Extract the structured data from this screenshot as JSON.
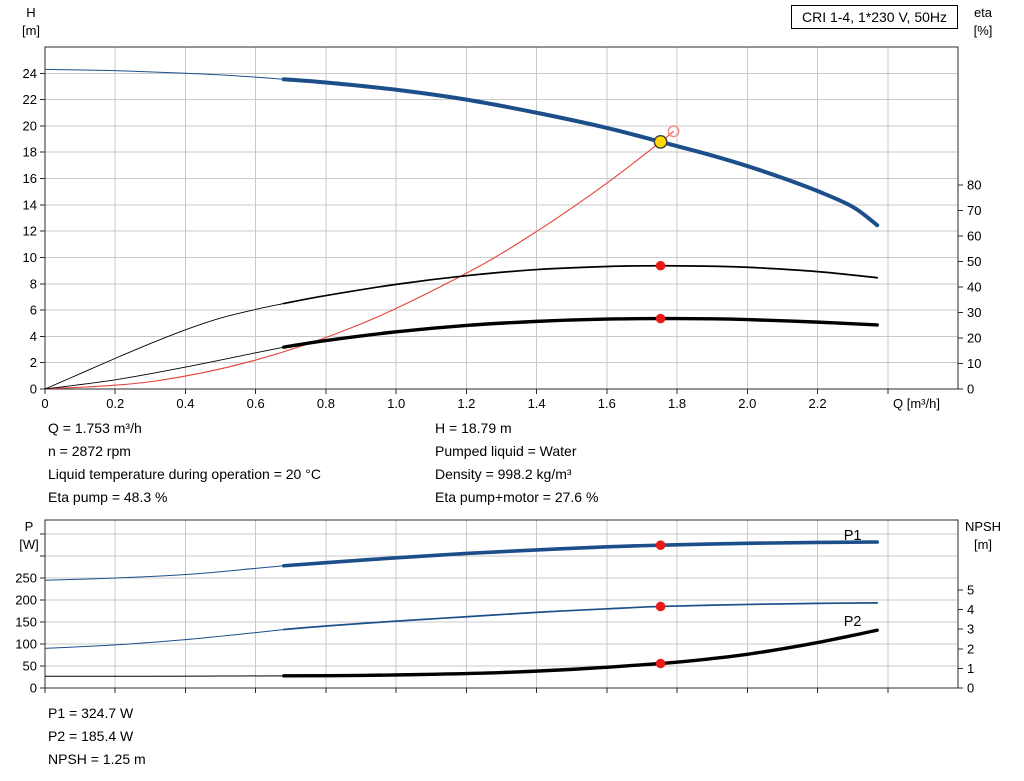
{
  "title_box": "CRI 1-4, 1*230 V, 50Hz",
  "info_top": {
    "left": [
      "Q = 1.753 m³/h",
      "n = 2872 rpm",
      "Liquid temperature during operation = 20 °C",
      "Eta pump = 48.3 %"
    ],
    "right": [
      "H = 18.79 m",
      "Pumped liquid = Water",
      "Density = 998.2 kg/m³",
      "Eta pump+motor = 27.6 %"
    ]
  },
  "info_bottom": [
    "P1 = 324.7 W",
    "P2 = 185.4 W",
    "NPSH = 1.25 m"
  ],
  "colors": {
    "curve_blue": "#1c4f8a",
    "curve_red": "#e4453e",
    "curve_black": "#000000",
    "dot_red": "#e81b1b",
    "dot_yellow": "#ffd800",
    "open_circle_red": "#ef8b84",
    "grid": "#c9c9c9",
    "frame": "#2b2b2b",
    "text": "#000000"
  },
  "chart_data": [
    {
      "id": "qh",
      "type": "line",
      "title": "CRI 1-4, 1*230 V, 50Hz",
      "x_axis": {
        "label": "Q [m³/h]",
        "min": 0,
        "max": 2.6,
        "tick_values": [
          0,
          0.2,
          0.4,
          0.6,
          0.8,
          1.0,
          1.2,
          1.4,
          1.6,
          1.8,
          2.0,
          2.2,
          2.4
        ],
        "tick_labels": [
          "0",
          "0.2",
          "0.4",
          "0.6",
          "0.8",
          "1.0",
          "1.2",
          "1.4",
          "1.6",
          "1.8",
          "2.0",
          "2.2"
        ]
      },
      "y_left": {
        "title_lines": [
          "H",
          "[m]"
        ],
        "min": 0,
        "max": 26,
        "tick_values": [
          0,
          2,
          4,
          6,
          8,
          10,
          12,
          14,
          16,
          18,
          20,
          22,
          24
        ],
        "tick_labels": [
          "0",
          "2",
          "4",
          "6",
          "8",
          "10",
          "12",
          "14",
          "16",
          "18",
          "20",
          "22",
          "24"
        ]
      },
      "y_right": {
        "title_lines": [
          "eta",
          "[%]"
        ],
        "min": 0,
        "max": 134,
        "tick_values": [
          0,
          10,
          20,
          30,
          40,
          50,
          60,
          70,
          80
        ],
        "tick_labels": [
          "0",
          "10",
          "20",
          "30",
          "40",
          "50",
          "60",
          "70",
          "80"
        ]
      },
      "series": [
        {
          "name": "head-curve",
          "axis": "left",
          "color": "curve_blue",
          "thin_width": 1,
          "thick_width": 4,
          "split_x": 0.68,
          "points": [
            [
              0,
              24.3
            ],
            [
              0.2,
              24.2
            ],
            [
              0.4,
              24.0
            ],
            [
              0.55,
              23.8
            ],
            [
              0.68,
              23.55
            ],
            [
              0.8,
              23.3
            ],
            [
              1.0,
              22.75
            ],
            [
              1.2,
              22.0
            ],
            [
              1.4,
              21.0
            ],
            [
              1.6,
              19.85
            ],
            [
              1.753,
              18.79
            ],
            [
              1.9,
              17.75
            ],
            [
              2.0,
              16.95
            ],
            [
              2.1,
              16.05
            ],
            [
              2.2,
              15.05
            ],
            [
              2.3,
              13.85
            ],
            [
              2.37,
              12.45
            ]
          ]
        },
        {
          "name": "system-curve",
          "axis": "left",
          "color": "curve_red",
          "thin_width": 1.1,
          "points": [
            [
              0,
              0
            ],
            [
              0.3,
              0.55
            ],
            [
              0.6,
              2.2
            ],
            [
              0.9,
              4.95
            ],
            [
              1.2,
              8.8
            ],
            [
              1.4,
              11.98
            ],
            [
              1.6,
              15.65
            ],
            [
              1.753,
              18.79
            ],
            [
              1.79,
              19.59
            ]
          ]
        },
        {
          "name": "eta-pump-curve",
          "axis": "right",
          "color": "curve_black",
          "thin_width": 0.9,
          "thick_width": 1.7,
          "split_x": 0.68,
          "points": [
            [
              0,
              0
            ],
            [
              0.1,
              6
            ],
            [
              0.2,
              12
            ],
            [
              0.3,
              17.8
            ],
            [
              0.4,
              23.2
            ],
            [
              0.5,
              27.8
            ],
            [
              0.6,
              31.2
            ],
            [
              0.68,
              33.5
            ],
            [
              0.8,
              36.6
            ],
            [
              1.0,
              41.0
            ],
            [
              1.2,
              44.4
            ],
            [
              1.4,
              46.8
            ],
            [
              1.6,
              48.0
            ],
            [
              1.753,
              48.3
            ],
            [
              1.9,
              48.1
            ],
            [
              2.0,
              47.7
            ],
            [
              2.2,
              46.0
            ],
            [
              2.37,
              43.6
            ]
          ]
        },
        {
          "name": "eta-pump-motor-curve",
          "axis": "right",
          "color": "curve_black",
          "thin_width": 0.9,
          "thick_width": 3.4,
          "split_x": 0.68,
          "points": [
            [
              0,
              0
            ],
            [
              0.2,
              3.6
            ],
            [
              0.4,
              8.6
            ],
            [
              0.6,
              14.2
            ],
            [
              0.68,
              16.4
            ],
            [
              0.8,
              19.0
            ],
            [
              1.0,
              22.4
            ],
            [
              1.2,
              24.9
            ],
            [
              1.4,
              26.5
            ],
            [
              1.6,
              27.4
            ],
            [
              1.753,
              27.6
            ],
            [
              1.9,
              27.5
            ],
            [
              2.0,
              27.2
            ],
            [
              2.2,
              26.2
            ],
            [
              2.37,
              25.1
            ]
          ]
        }
      ],
      "markers": [
        {
          "name": "duty-point",
          "axis": "left",
          "x": 1.753,
          "y": 18.79,
          "style": "yellow"
        },
        {
          "name": "system-curve-end",
          "axis": "left",
          "x": 1.79,
          "y": 19.59,
          "style": "open"
        },
        {
          "name": "eta-pump-point",
          "axis": "right",
          "x": 1.753,
          "y": 48.3,
          "style": "red"
        },
        {
          "name": "eta-pump-motor-point",
          "axis": "right",
          "x": 1.753,
          "y": 27.6,
          "style": "red"
        }
      ],
      "annotations": []
    },
    {
      "id": "power",
      "type": "line",
      "title": "",
      "x_axis": {
        "label": "",
        "min": 0,
        "max": 2.6,
        "tick_values": [
          0,
          0.2,
          0.4,
          0.6,
          0.8,
          1.0,
          1.2,
          1.4,
          1.6,
          1.8,
          2.0,
          2.2,
          2.4
        ],
        "tick_labels": []
      },
      "y_left": {
        "title_lines": [
          "P",
          "[W]"
        ],
        "min": 0,
        "max": 382,
        "tick_values": [
          0,
          50,
          100,
          150,
          200,
          250,
          300,
          350
        ],
        "tick_labels": [
          "0",
          "50",
          "100",
          "150",
          "200",
          "250"
        ]
      },
      "y_right": {
        "title_lines": [
          "NPSH",
          "[m]"
        ],
        "min": 0,
        "max": 8.57,
        "tick_values": [
          0,
          1,
          2,
          3,
          4,
          5
        ],
        "tick_labels": [
          "0",
          "1",
          "2",
          "3",
          "4",
          "5"
        ]
      },
      "series": [
        {
          "name": "p1-curve",
          "axis": "left",
          "color": "curve_blue",
          "thin_width": 1,
          "thick_width": 3.6,
          "split_x": 0.68,
          "points": [
            [
              0,
              245
            ],
            [
              0.2,
              250
            ],
            [
              0.4,
              258
            ],
            [
              0.6,
              272
            ],
            [
              0.68,
              278
            ],
            [
              0.8,
              285
            ],
            [
              1.0,
              296
            ],
            [
              1.2,
              306
            ],
            [
              1.4,
              314
            ],
            [
              1.6,
              321
            ],
            [
              1.753,
              324.7
            ],
            [
              2.0,
              329
            ],
            [
              2.2,
              331
            ],
            [
              2.37,
              332
            ]
          ]
        },
        {
          "name": "p2-curve",
          "axis": "left",
          "color": "curve_blue",
          "thin_width": 1,
          "thick_width": 1.7,
          "split_x": 0.68,
          "points": [
            [
              0,
              90
            ],
            [
              0.2,
              98
            ],
            [
              0.4,
              110
            ],
            [
              0.6,
              126
            ],
            [
              0.68,
              133
            ],
            [
              0.8,
              141
            ],
            [
              1.0,
              152
            ],
            [
              1.2,
              162
            ],
            [
              1.4,
              172
            ],
            [
              1.6,
              180
            ],
            [
              1.753,
              185.4
            ],
            [
              2.0,
              190
            ],
            [
              2.2,
              192.5
            ],
            [
              2.37,
              193.5
            ]
          ]
        },
        {
          "name": "npsh-curve",
          "axis": "right",
          "color": "curve_black",
          "thin_width": 1,
          "thick_width": 3.4,
          "split_x": 0.68,
          "points": [
            [
              0,
              0.6
            ],
            [
              0.3,
              0.6
            ],
            [
              0.5,
              0.61
            ],
            [
              0.68,
              0.62
            ],
            [
              0.9,
              0.64
            ],
            [
              1.1,
              0.7
            ],
            [
              1.3,
              0.79
            ],
            [
              1.5,
              0.95
            ],
            [
              1.753,
              1.25
            ],
            [
              1.9,
              1.5
            ],
            [
              2.0,
              1.72
            ],
            [
              2.1,
              2.0
            ],
            [
              2.2,
              2.32
            ],
            [
              2.3,
              2.68
            ],
            [
              2.37,
              2.95
            ]
          ]
        }
      ],
      "markers": [
        {
          "name": "p1-point",
          "axis": "left",
          "x": 1.753,
          "y": 324.7,
          "style": "red"
        },
        {
          "name": "p2-point",
          "axis": "left",
          "x": 1.753,
          "y": 185.4,
          "style": "red"
        },
        {
          "name": "npsh-point",
          "axis": "right",
          "x": 1.753,
          "y": 1.25,
          "style": "red"
        }
      ],
      "annotations": [
        {
          "name": "p1-label",
          "text": "P1",
          "axis": "left",
          "x": 2.3,
          "y": 348,
          "color": "curve_blue"
        },
        {
          "name": "p2-label",
          "text": "P2",
          "axis": "left",
          "x": 2.3,
          "y": 152,
          "color": "curve_blue"
        }
      ]
    }
  ]
}
